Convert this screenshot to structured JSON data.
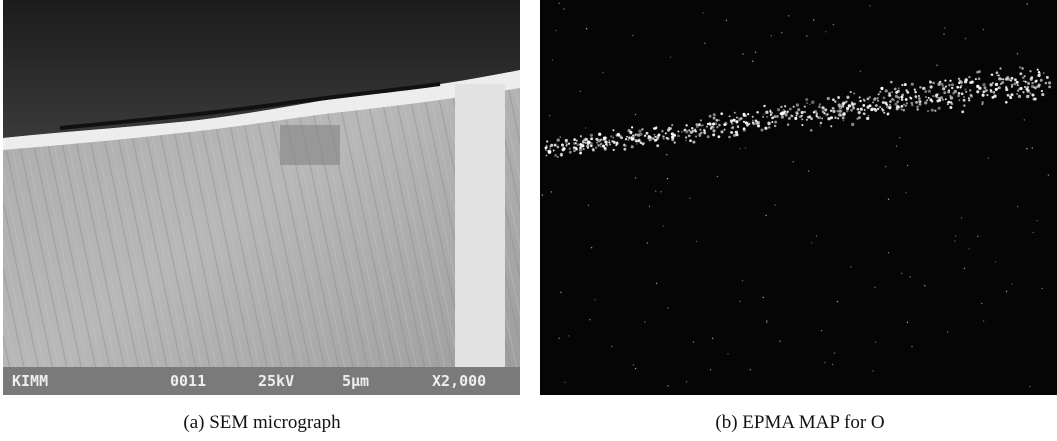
{
  "panels": [
    {
      "caption": "(a) SEM micrograph",
      "info_bar": [
        "KIMM",
        "0011",
        "25kV",
        "5μm",
        "X2,000"
      ]
    },
    {
      "caption": "(b) EPMA MAP for O"
    }
  ]
}
